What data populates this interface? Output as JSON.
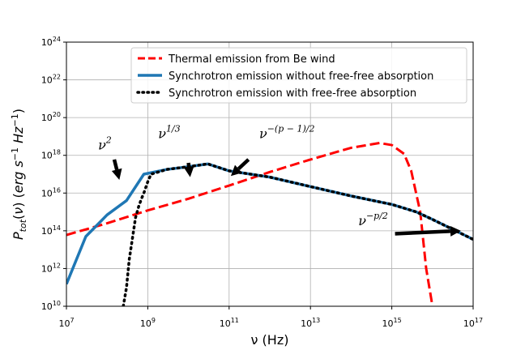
{
  "chart_data": {
    "type": "line",
    "xscale": "log",
    "yscale": "log",
    "xlim": [
      10000000.0,
      1e+17
    ],
    "ylim": [
      10000000000.0,
      1e+24
    ],
    "grid": true,
    "legend_position": "top-right",
    "xlabel": "ν (Hz)",
    "ylabel": "P_tot(ν) (erg s^-1 Hz^-1)",
    "x_ticks": [
      {
        "base": "10",
        "exp": "7",
        "value": 10000000.0
      },
      {
        "base": "10",
        "exp": "9",
        "value": 1000000000.0
      },
      {
        "base": "10",
        "exp": "11",
        "value": 100000000000.0
      },
      {
        "base": "10",
        "exp": "13",
        "value": 10000000000000.0
      },
      {
        "base": "10",
        "exp": "15",
        "value": 1000000000000000.0
      },
      {
        "base": "10",
        "exp": "17",
        "value": 1e+17
      }
    ],
    "y_ticks": [
      {
        "base": "10",
        "exp": "10",
        "value": 10000000000.0
      },
      {
        "base": "10",
        "exp": "12",
        "value": 1000000000000.0
      },
      {
        "base": "10",
        "exp": "14",
        "value": 100000000000000.0
      },
      {
        "base": "10",
        "exp": "16",
        "value": 1e+16
      },
      {
        "base": "10",
        "exp": "18",
        "value": 1e+18
      },
      {
        "base": "10",
        "exp": "20",
        "value": 1e+20
      },
      {
        "base": "10",
        "exp": "22",
        "value": 1e+22
      },
      {
        "base": "10",
        "exp": "24",
        "value": 1e+24
      }
    ],
    "series": [
      {
        "name": "Thermal emission from Be wind",
        "color": "#ff0000",
        "style": "dashed",
        "x": [
          10000000.0,
          100000000.0,
          1000000000.0,
          10000000000.0,
          100000000000.0,
          1000000000000.0,
          10000000000000.0,
          100000000000000.0,
          500000000000000.0,
          1000000000000000.0,
          2000000000000000.0,
          3000000000000000.0,
          5000000000000000.0,
          7000000000000000.0,
          1e+16
        ],
        "y": [
          60000000000000.0,
          250000000000000.0,
          1200000000000000.0,
          5000000000000000.0,
          2.5e+16,
          1.3e+17,
          6e+17,
          2.5e+18,
          4.5e+18,
          3.5e+18,
          1.2e+18,
          1.5e+17,
          1000000000000000.0,
          1000000000000.0,
          10000000000.0
        ]
      },
      {
        "name": "Synchrotron emission without free-free absorption",
        "color": "#1f77b4",
        "style": "solid",
        "x": [
          10000000.0,
          30000000.0,
          100000000.0,
          300000000.0,
          800000000.0,
          3000000000.0,
          10000000000.0,
          30000000000.0,
          100000000000.0,
          1000000000000.0,
          10000000000000.0,
          100000000000000.0,
          1000000000000000.0,
          4000000000000000.0,
          1e+16,
          1e+17
        ],
        "y": [
          150000000000.0,
          50000000000000.0,
          700000000000000.0,
          4000000000000000.0,
          1e+17,
          1.8e+17,
          2.5e+17,
          3.5e+17,
          1.5e+17,
          7e+16,
          2.2e+16,
          7000000000000000.0,
          2500000000000000.0,
          1000000000000000.0,
          400000000000000.0,
          35000000000000.0
        ]
      },
      {
        "name": "Synchrotron emission with free-free absorption",
        "color": "#000000",
        "style": "dotted",
        "x": [
          250000000.0,
          300000000.0,
          350000000.0,
          400000000.0,
          500000000.0,
          600000000.0,
          700000000.0,
          800000000.0,
          1000000000.0,
          1200000000.0,
          3000000000.0,
          10000000000.0,
          30000000000.0,
          100000000000.0,
          1000000000000.0,
          10000000000000.0,
          100000000000000.0,
          1000000000000000.0,
          4000000000000000.0,
          1e+16,
          1e+17
        ],
        "y": [
          10000000000.0,
          100000000000.0,
          3000000000000.0,
          20000000000000.0,
          500000000000000.0,
          2000000000000000.0,
          5000000000000000.0,
          1e+16,
          4e+16,
          1e+17,
          1.8e+17,
          2.5e+17,
          3.5e+17,
          1.5e+17,
          7e+16,
          2.2e+16,
          7000000000000000.0,
          2500000000000000.0,
          1000000000000000.0,
          400000000000000.0,
          35000000000000.0
        ]
      }
    ],
    "annotations": [
      {
        "base": "ν",
        "sup": "2",
        "text_at": [
          60000000.0,
          2e+18
        ],
        "arrow_from": [
          150000000.0,
          6e+17
        ],
        "arrow_to": [
          200000000.0,
          5e+16
        ]
      },
      {
        "base": "ν",
        "sup": "1/3",
        "text_at": [
          1800000000.0,
          8e+18
        ],
        "arrow_from": [
          10000000000.0,
          4e+17
        ],
        "arrow_to": [
          11000000000.0,
          7e+16
        ]
      },
      {
        "base": "ν",
        "sup": "−(p − 1)/2",
        "text_at": [
          550000000000.0,
          8e+18
        ],
        "arrow_from": [
          300000000000.0,
          6e+17
        ],
        "arrow_to": [
          110000000000.0,
          8e+16
        ]
      },
      {
        "base": "ν",
        "sup": "−p/2",
        "text_at": [
          150000000000000.0,
          200000000000000.0
        ],
        "arrow_from": [
          1200000000000000.0,
          70000000000000.0
        ],
        "arrow_to": [
          5e+16,
          100000000000000.0
        ]
      }
    ]
  }
}
